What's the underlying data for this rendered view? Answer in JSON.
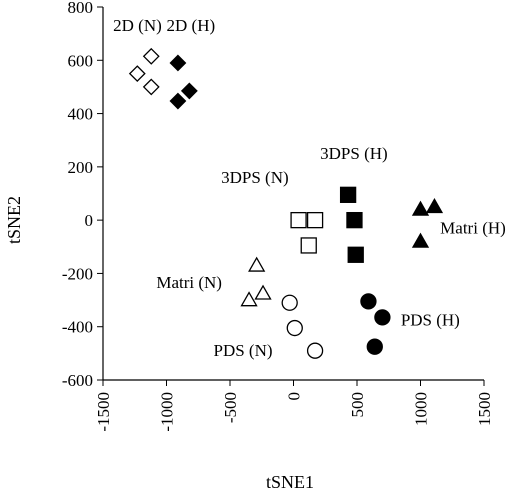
{
  "chart_data": {
    "type": "scatter",
    "title": "",
    "xlabel": "tSNE1",
    "ylabel": "tSNE2",
    "xlim": [
      -1500,
      1500
    ],
    "ylim": [
      -600,
      800
    ],
    "xticks": [
      -1500,
      -1000,
      -500,
      0,
      500,
      1000,
      1500
    ],
    "xtick_labels": [
      "-1500",
      "-1000",
      "-500",
      "0",
      "500",
      "1000",
      "1500"
    ],
    "yticks": [
      -600,
      -400,
      -200,
      0,
      200,
      400,
      600,
      800
    ],
    "ytick_labels": [
      "-600",
      "-400",
      "-200",
      "0",
      "200",
      "400",
      "600",
      "800"
    ],
    "grid": false,
    "series": [
      {
        "name": "2D (N)",
        "marker": "diamond",
        "filled": false,
        "points": [
          [
            -1230,
            550
          ],
          [
            -1120,
            615
          ],
          [
            -1120,
            500
          ]
        ]
      },
      {
        "name": "2D (H)",
        "marker": "diamond",
        "filled": true,
        "points": [
          [
            -910,
            590
          ],
          [
            -820,
            485
          ],
          [
            -910,
            447
          ]
        ]
      },
      {
        "name": "3DPS (N)",
        "marker": "square",
        "filled": false,
        "points": [
          [
            40,
            0
          ],
          [
            170,
            0
          ],
          [
            120,
            -95
          ]
        ]
      },
      {
        "name": "3DPS (H)",
        "marker": "square",
        "filled": true,
        "points": [
          [
            430,
            95
          ],
          [
            480,
            0
          ],
          [
            490,
            -130
          ]
        ]
      },
      {
        "name": "Matri (N)",
        "marker": "triangle",
        "filled": false,
        "points": [
          [
            -290,
            -170
          ],
          [
            -350,
            -300
          ],
          [
            -240,
            -275
          ]
        ]
      },
      {
        "name": "Matri (H)",
        "marker": "triangle",
        "filled": true,
        "points": [
          [
            1000,
            40
          ],
          [
            1110,
            50
          ],
          [
            1000,
            -80
          ]
        ]
      },
      {
        "name": "PDS (N)",
        "marker": "circle",
        "filled": false,
        "points": [
          [
            -30,
            -310
          ],
          [
            10,
            -405
          ],
          [
            170,
            -490
          ]
        ]
      },
      {
        "name": "PDS (H)",
        "marker": "circle",
        "filled": true,
        "points": [
          [
            590,
            -305
          ],
          [
            700,
            -365
          ],
          [
            640,
            -475
          ]
        ]
      }
    ],
    "annotations": [
      {
        "text": "2D (N)",
        "x": -1420,
        "y": 710
      },
      {
        "text": "2D (H)",
        "x": -1000,
        "y": 710
      },
      {
        "text": "3DPS (N)",
        "x": -570,
        "y": 140
      },
      {
        "text": "3DPS (H)",
        "x": 210,
        "y": 230
      },
      {
        "text": "Matri (N)",
        "x": -1080,
        "y": -255
      },
      {
        "text": "Matri (H)",
        "x": 1155,
        "y": -50
      },
      {
        "text": "PDS (N)",
        "x": -630,
        "y": -510
      },
      {
        "text": "PDS (H)",
        "x": 845,
        "y": -395
      }
    ]
  }
}
